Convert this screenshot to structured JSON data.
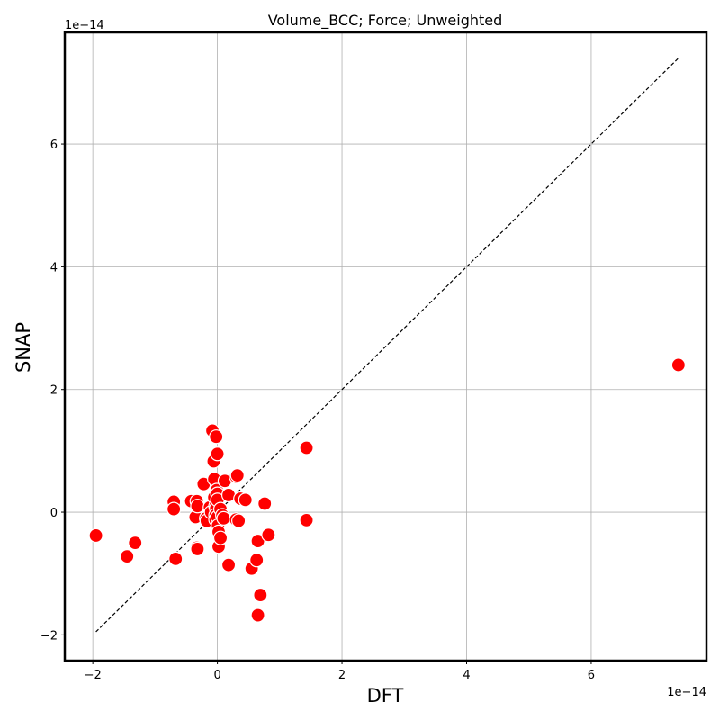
{
  "chart_data": {
    "type": "scatter",
    "title": "Volume_BCC; Force; Unweighted",
    "xlabel": "DFT",
    "ylabel": "SNAP",
    "x_offset_label": "1e−14",
    "y_offset_label": "1e−14",
    "xlim": [
      -2.45,
      7.85
    ],
    "ylim": [
      -2.42,
      7.82
    ],
    "xticks": [
      -2,
      0,
      2,
      4,
      6
    ],
    "yticks": [
      -2,
      0,
      2,
      4,
      6
    ],
    "xtick_labels": [
      "−2",
      "0",
      "2",
      "4",
      "6"
    ],
    "ytick_labels": [
      "−2",
      "0",
      "2",
      "4",
      "6"
    ],
    "grid": true,
    "point_color": "#ff0000",
    "reference_line": {
      "from": [
        -1.95,
        -1.95
      ],
      "to": [
        7.4,
        7.4
      ],
      "style": "dashed",
      "color": "#000000"
    },
    "points": [
      {
        "x": -1.95,
        "y": -0.38
      },
      {
        "x": -1.45,
        "y": -0.72
      },
      {
        "x": -1.32,
        "y": -0.5
      },
      {
        "x": -0.7,
        "y": 0.17
      },
      {
        "x": -0.7,
        "y": 0.05
      },
      {
        "x": -0.67,
        "y": -0.76
      },
      {
        "x": -0.42,
        "y": 0.18
      },
      {
        "x": -0.35,
        "y": -0.08
      },
      {
        "x": -0.33,
        "y": 0.18
      },
      {
        "x": -0.32,
        "y": 0.1
      },
      {
        "x": -0.33,
        "y": -0.58
      },
      {
        "x": -0.32,
        "y": -0.6
      },
      {
        "x": -0.22,
        "y": 0.46
      },
      {
        "x": -0.18,
        "y": -0.1
      },
      {
        "x": -0.17,
        "y": -0.14
      },
      {
        "x": -0.12,
        "y": 0.08
      },
      {
        "x": -0.1,
        "y": 0.0
      },
      {
        "x": -0.08,
        "y": 1.33
      },
      {
        "x": -0.06,
        "y": 0.83
      },
      {
        "x": -0.05,
        "y": 0.54
      },
      {
        "x": -0.05,
        "y": 0.24
      },
      {
        "x": -0.03,
        "y": 0.1
      },
      {
        "x": -0.02,
        "y": 0.06
      },
      {
        "x": -0.03,
        "y": -0.05
      },
      {
        "x": -0.03,
        "y": -0.12
      },
      {
        "x": -0.02,
        "y": 1.23
      },
      {
        "x": -0.01,
        "y": 0.36
      },
      {
        "x": 0.0,
        "y": 0.95
      },
      {
        "x": 0.0,
        "y": 0.3
      },
      {
        "x": 0.0,
        "y": 0.2
      },
      {
        "x": 0.0,
        "y": -0.08
      },
      {
        "x": 0.01,
        "y": -0.22
      },
      {
        "x": 0.02,
        "y": -0.32
      },
      {
        "x": 0.02,
        "y": -0.56
      },
      {
        "x": 0.05,
        "y": -0.42
      },
      {
        "x": 0.05,
        "y": 0.05
      },
      {
        "x": 0.08,
        "y": -0.05
      },
      {
        "x": 0.1,
        "y": -0.1
      },
      {
        "x": 0.12,
        "y": 0.51
      },
      {
        "x": 0.18,
        "y": 0.28
      },
      {
        "x": 0.18,
        "y": -0.86
      },
      {
        "x": 0.3,
        "y": 0.58
      },
      {
        "x": 0.32,
        "y": 0.6
      },
      {
        "x": 0.3,
        "y": -0.12
      },
      {
        "x": 0.34,
        "y": -0.14
      },
      {
        "x": 0.37,
        "y": 0.22
      },
      {
        "x": 0.45,
        "y": 0.2
      },
      {
        "x": 0.55,
        "y": -0.92
      },
      {
        "x": 0.63,
        "y": -0.78
      },
      {
        "x": 0.65,
        "y": -0.47
      },
      {
        "x": 0.65,
        "y": -1.68
      },
      {
        "x": 0.69,
        "y": -1.35
      },
      {
        "x": 0.76,
        "y": 0.14
      },
      {
        "x": 0.82,
        "y": -0.37
      },
      {
        "x": 1.43,
        "y": 1.05
      },
      {
        "x": 1.43,
        "y": -0.13
      },
      {
        "x": 7.4,
        "y": 2.4
      }
    ]
  }
}
